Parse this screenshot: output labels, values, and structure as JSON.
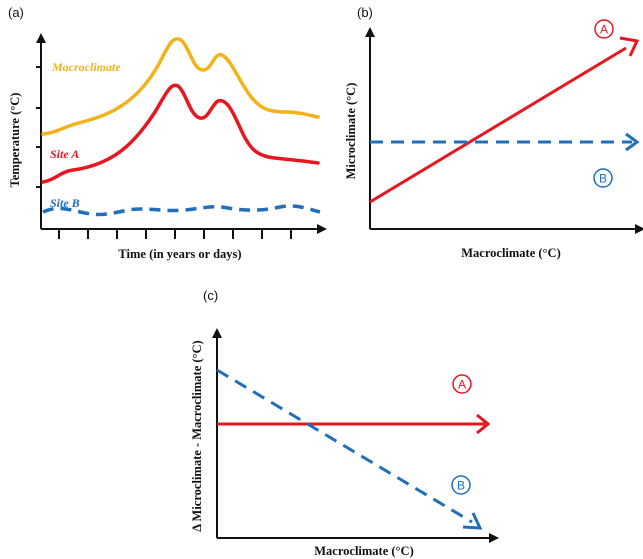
{
  "panels": {
    "a": {
      "label": "(a)",
      "xlabel": "Time (in years or days)",
      "ylabel": "Temperature (°C)",
      "series": [
        {
          "name": "Macroclimate",
          "color": "#f2b21a",
          "style": "solid"
        },
        {
          "name": "Site A",
          "color": "#e8171f",
          "style": "solid"
        },
        {
          "name": "Site B",
          "color": "#1f6fba",
          "style": "dashed"
        }
      ]
    },
    "b": {
      "label": "(b)",
      "xlabel": "Macroclimate (°C)",
      "ylabel": "Microclimate (°C)",
      "markers": [
        {
          "letter": "A",
          "color": "#e8171f"
        },
        {
          "letter": "B",
          "color": "#1f6fba"
        }
      ]
    },
    "c": {
      "label": "(c)",
      "xlabel": "Macroclimate (°C)",
      "ylabel": "Δ Microclimate - Macroclimate (°C)",
      "markers": [
        {
          "letter": "A",
          "color": "#e8171f"
        },
        {
          "letter": "B",
          "color": "#1f6fba"
        }
      ]
    }
  },
  "colors": {
    "red": "#e8171f",
    "blue": "#1f6fba",
    "yellow": "#f2b21a",
    "axis": "#111111"
  }
}
